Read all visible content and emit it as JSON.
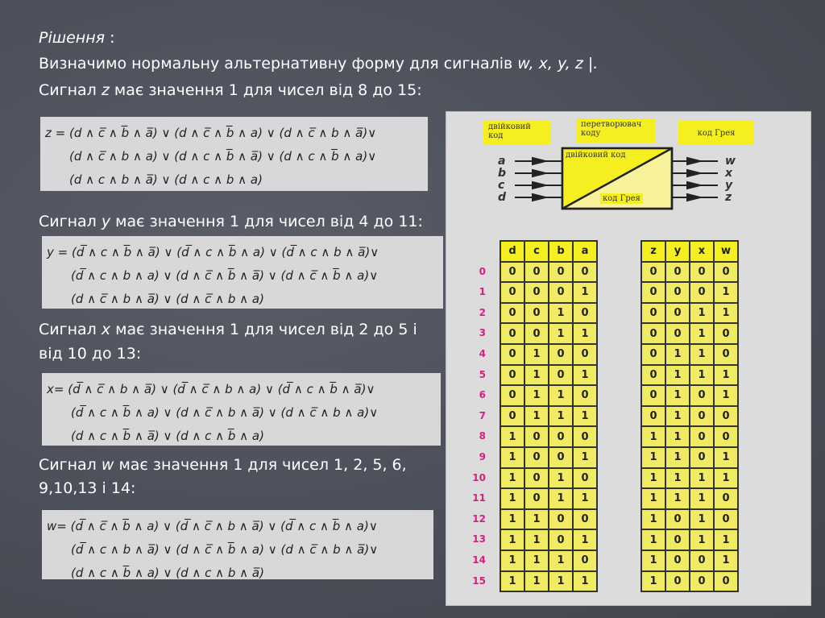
{
  "heading": "Рішення",
  "heading_suffix": " :",
  "intro": {
    "text": "Визначимо нормальну альтернативну форму для сигналів ",
    "vars": "w, x, y, z |."
  },
  "z_text": {
    "pre": "Сигнал ",
    "var": "z",
    "post": " має значення 1 для чисел від 8 до 15:"
  },
  "y_text": {
    "pre": "Сигнал ",
    "var": "y",
    "post": " має значення 1 для чисел від 4 до 11:"
  },
  "x_text": {
    "pre": "Сигнал ",
    "var": "x",
    "post": " має значення 1 для чисел від 2 до 5 і",
    "line2": "від 10 до 13:"
  },
  "w_text": {
    "pre": "Сигнал ",
    "var": "w",
    "post": " має значення 1 для чисел 1, 2, 5, 6,",
    "line2": "9,10,13 і 14:"
  },
  "formulas": {
    "z": [
      "z = (d ∧ c̅ ∧ b̅ ∧ a̅) ∨ (d ∧ c̅ ∧ b̅ ∧ a) ∨ (d ∧ c̅ ∧ b ∧ a̅)∨",
      "(d ∧ c̅ ∧ b ∧ a) ∨ (d ∧ c ∧ b̅ ∧ a̅) ∨ (d ∧ c ∧ b̅ ∧ a)∨",
      "(d ∧ c ∧ b ∧ a̅) ∨ (d ∧ c ∧ b ∧ a)"
    ],
    "y": [
      "y = (d̅ ∧ c ∧ b̅ ∧ a̅) ∨ (d̅ ∧ c ∧ b̅ ∧ a) ∨ (d̅ ∧ c ∧ b ∧ a̅)∨",
      "(d̅ ∧ c ∧ b ∧ a) ∨ (d ∧ c̅ ∧ b̅ ∧ a̅) ∨ (d ∧ c̅ ∧ b̅ ∧ a)∨",
      "(d ∧ c̅ ∧ b ∧ a̅) ∨ (d ∧ c̅ ∧ b ∧ a)"
    ],
    "x": [
      "x= (d̅ ∧ c̅ ∧ b ∧ a̅) ∨ (d̅ ∧ c̅ ∧ b ∧ a) ∨ (d̅ ∧ c ∧ b̅ ∧ a̅)∨",
      "(d̅ ∧ c ∧ b̅ ∧ a) ∨ (d ∧ c̅ ∧ b ∧ a̅) ∨ (d ∧ c̅ ∧ b ∧ a)∨",
      "(d ∧ c ∧ b̅ ∧ a̅) ∨ (d ∧ c ∧ b̅ ∧ a)"
    ],
    "w": [
      "w= (d̅ ∧ c̅ ∧ b̅ ∧ a) ∨ (d̅ ∧ c̅ ∧ b ∧ a̅) ∨ (d̅ ∧ c ∧ b̅ ∧ a)∨",
      "(d̅ ∧ c ∧ b ∧ a̅) ∨ (d ∧ c̅ ∧ b̅ ∧ a) ∨ (d ∧ c̅ ∧ b ∧ a̅)∨",
      "(d ∧ c ∧ b̅ ∧ a) ∨ (d ∧ c ∧ b ∧ a̅)"
    ]
  },
  "diagram": {
    "label_binary": "двійковий код",
    "label_converter": "перетворювач коду",
    "label_gray": "код Грея",
    "box_top": "двійковий код",
    "box_bottom": "код Грея",
    "inputs": [
      "a",
      "b",
      "c",
      "d"
    ],
    "outputs": [
      "w",
      "x",
      "y",
      "z"
    ],
    "yellow": "#f5ef1f"
  },
  "binary_table": {
    "headers": [
      "d",
      "c",
      "b",
      "a"
    ],
    "rows": [
      "0000",
      "0001",
      "0010",
      "0011",
      "0100",
      "0101",
      "0110",
      "0111",
      "1000",
      "1001",
      "1010",
      "1011",
      "1100",
      "1101",
      "1110",
      "1111"
    ]
  },
  "gray_table": {
    "headers": [
      "z",
      "y",
      "x",
      "w"
    ],
    "rows": [
      "0000",
      "0001",
      "0011",
      "0010",
      "0110",
      "0111",
      "0101",
      "0100",
      "1100",
      "1101",
      "1111",
      "1110",
      "1010",
      "1011",
      "1001",
      "1000"
    ]
  },
  "row_numbers": [
    "0",
    "1",
    "2",
    "3",
    "4",
    "5",
    "6",
    "7",
    "8",
    "9",
    "10",
    "11",
    "12",
    "13",
    "14",
    "15"
  ]
}
